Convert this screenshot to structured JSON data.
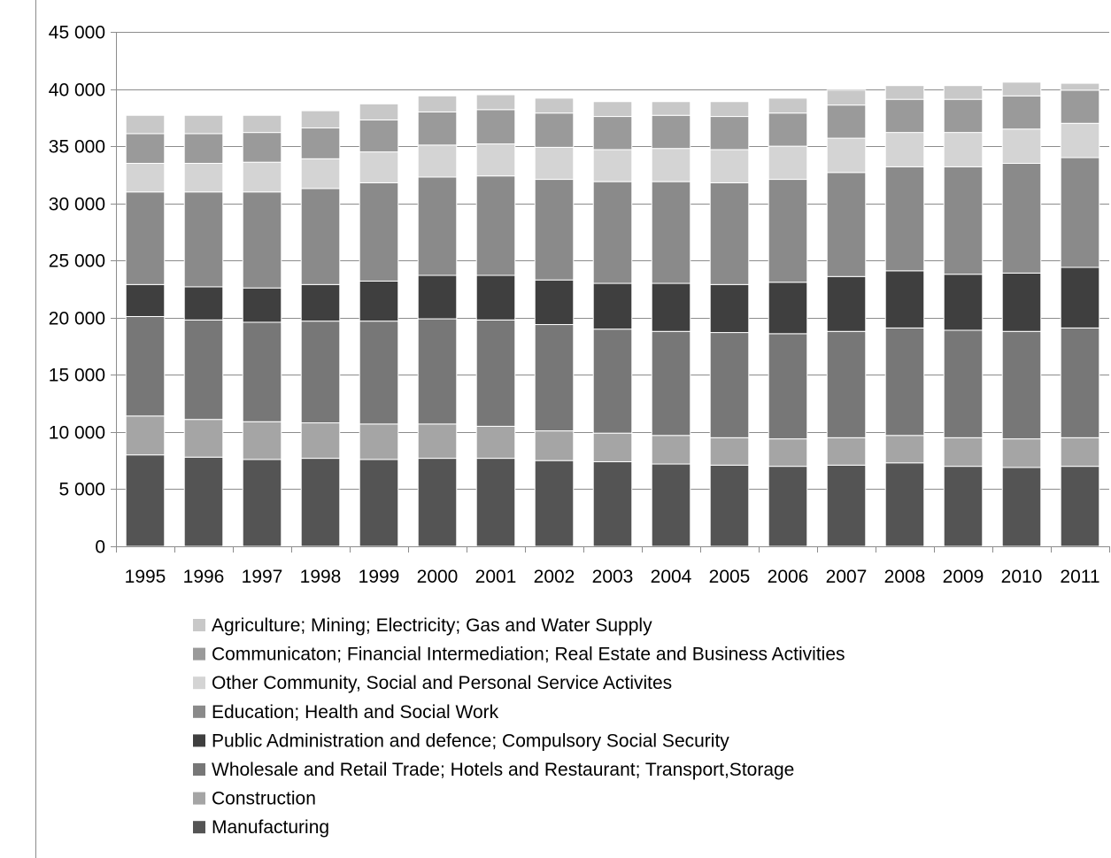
{
  "chart_data": {
    "type": "bar",
    "stacked": true,
    "title": "",
    "xlabel": "",
    "ylabel": "",
    "ylim": [
      0,
      45000
    ],
    "yticks": [
      0,
      5000,
      10000,
      15000,
      20000,
      25000,
      30000,
      35000,
      40000,
      45000
    ],
    "ytick_labels": [
      "0",
      "5 000",
      "10 000",
      "15 000",
      "20 000",
      "25 000",
      "30 000",
      "35 000",
      "40 000",
      "45 000"
    ],
    "grid": true,
    "legend_position": "bottom",
    "categories": [
      "1995",
      "1996",
      "1997",
      "1998",
      "1999",
      "2000",
      "2001",
      "2002",
      "2003",
      "2004",
      "2005",
      "2006",
      "2007",
      "2008",
      "2009",
      "2010",
      "2011"
    ],
    "series": [
      {
        "name": "Manufacturing",
        "color": "#545454",
        "values": [
          8000,
          7800,
          7600,
          7700,
          7600,
          7700,
          7700,
          7500,
          7400,
          7200,
          7100,
          7000,
          7100,
          7300,
          7000,
          6900,
          7000
        ]
      },
      {
        "name": "Construction",
        "color": "#a5a5a5",
        "values": [
          3400,
          3300,
          3300,
          3100,
          3100,
          3000,
          2800,
          2600,
          2500,
          2500,
          2400,
          2400,
          2400,
          2400,
          2500,
          2500,
          2500
        ]
      },
      {
        "name": "Wholesale and Retail Trade; Hotels and Restaurant; Transport,Storage",
        "color": "#777777",
        "values": [
          8700,
          8700,
          8700,
          8900,
          9000,
          9200,
          9300,
          9300,
          9100,
          9100,
          9200,
          9200,
          9300,
          9400,
          9400,
          9400,
          9600
        ]
      },
      {
        "name": "Public Administration and defence; Compulsory Social Security",
        "color": "#3f3f3f",
        "values": [
          2800,
          2900,
          3000,
          3200,
          3500,
          3800,
          3900,
          3900,
          4000,
          4200,
          4200,
          4500,
          4800,
          5000,
          4900,
          5100,
          5300
        ]
      },
      {
        "name": "Education; Health and Social Work",
        "color": "#8a8a8a",
        "values": [
          8100,
          8300,
          8400,
          8400,
          8600,
          8600,
          8700,
          8800,
          8900,
          8900,
          8900,
          9000,
          9100,
          9100,
          9400,
          9600,
          9600
        ]
      },
      {
        "name": "Other Community, Social and Personal Service Activites",
        "color": "#d4d4d4",
        "values": [
          2500,
          2500,
          2600,
          2600,
          2700,
          2800,
          2800,
          2800,
          2800,
          2900,
          2900,
          2900,
          3000,
          3000,
          3000,
          3000,
          3000
        ]
      },
      {
        "name": "Communicaton; Financial Intermediation; Real Estate and Business Activities",
        "color": "#9a9a9a",
        "values": [
          2600,
          2600,
          2600,
          2700,
          2800,
          2900,
          3000,
          3000,
          2900,
          2900,
          2900,
          2900,
          2900,
          2900,
          2900,
          2900,
          2900
        ]
      },
      {
        "name": "Agriculture; Mining; Electricity; Gas and Water Supply",
        "color": "#c8c8c8",
        "values": [
          1600,
          1600,
          1500,
          1500,
          1400,
          1400,
          1300,
          1300,
          1300,
          1200,
          1300,
          1300,
          1300,
          1200,
          1200,
          1200,
          600
        ]
      }
    ]
  }
}
